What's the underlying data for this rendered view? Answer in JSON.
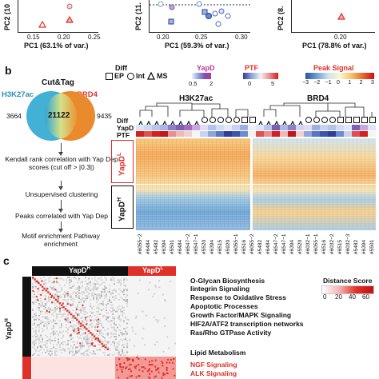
{
  "panel_a": {
    "plots": [
      {
        "ylabel": "PC2 (10",
        "xlabel": "PC1 (63.1% of var.)",
        "ticks": [
          "0.15",
          "0.20",
          "0.25"
        ]
      },
      {
        "ylabel": "PC2 (11.",
        "xlabel": "PC1 (59.3% of var.)",
        "ticks": [
          "0.20",
          "0.25",
          "0.30"
        ]
      },
      {
        "ylabel": "PC2 (8.",
        "xlabel": "PC1 (78.8% of var.)",
        "ticks": [
          "0.20"
        ]
      }
    ]
  },
  "panel_b": {
    "letter": "b",
    "flow": {
      "title": "Cut&Tag",
      "left_label": "H3K27ac",
      "right_label": "BRD4",
      "left_count": "3664",
      "center_count": "21122",
      "right_count": "9435",
      "step1": "Kendall rank correlation with Yap Dep scores (cut off > |0.3|)",
      "step2": "Unsupervised clustering",
      "step3": "Peaks correlated with Yap Dep",
      "step4": "Motif enrichment Pathway enrichment"
    },
    "legend": {
      "diff_title": "Diff",
      "ep": "EP",
      "int": "Int",
      "ms": "MS",
      "yapd_title": "YapD",
      "yapd_ticks": [
        "0.5",
        "2"
      ],
      "ptf_title": "PTF",
      "ptf_ticks": [
        "0",
        "5"
      ],
      "peak_title": "Peak Signal",
      "peak_ticks": [
        "−3",
        "−2",
        "−1",
        "0",
        "1",
        "2",
        "3"
      ]
    },
    "heatmap": {
      "h3k27ac_title": "H3K27ac",
      "brd4_title": "BRD4",
      "row_labels": [
        "Diff",
        "YapD",
        "PTF"
      ],
      "yapdl_label": "YapD",
      "yapdl_sup": "L",
      "yapdh_label": "YapD",
      "yapdh_sup": "H",
      "samples": [
        "#6055−2",
        "#6484",
        "#5482",
        "#6394",
        "#5501",
        "#6484",
        "#6547−2",
        "#6547−1",
        "#5520",
        "#6394",
        "#6515",
        "#5920",
        "#6055−1",
        "#6516",
        "#6055−2",
        "#5482",
        "#6484",
        "#6547−2",
        "#6547−1",
        "#6394",
        "#5520",
        "#6032−1",
        "#6055−1",
        "#6516",
        "#6032−2",
        "#6515",
        "#6032−3",
        "#5482",
        "#6394",
        "#5501"
      ]
    }
  },
  "panel_c": {
    "letter": "c",
    "yapdh_top": "YapD",
    "yapdh_top_sup": "H",
    "yapdl_top": "YapD",
    "yapdl_top_sup": "L",
    "side_label": "YapD",
    "side_sup": "H",
    "legend_title": "Distance Score",
    "legend_ticks": [
      "0",
      "20",
      "40",
      "60"
    ],
    "functions_black": [
      "O-Glycan Biosynthesis",
      "Iintegrin Signaling",
      "Response to Oxidative Stress",
      "Apoptotic Processes",
      "Growth Factor/MAPK Signaling",
      "HIF2A/ATF2 transcription networks",
      "Ras/Rho GTPase Activity",
      "Lipid Metabolism"
    ],
    "functions_red": [
      "NGF Signaling",
      "ALK Signaling"
    ],
    "colors": {
      "red": "#e0302a",
      "black": "#111111"
    }
  }
}
